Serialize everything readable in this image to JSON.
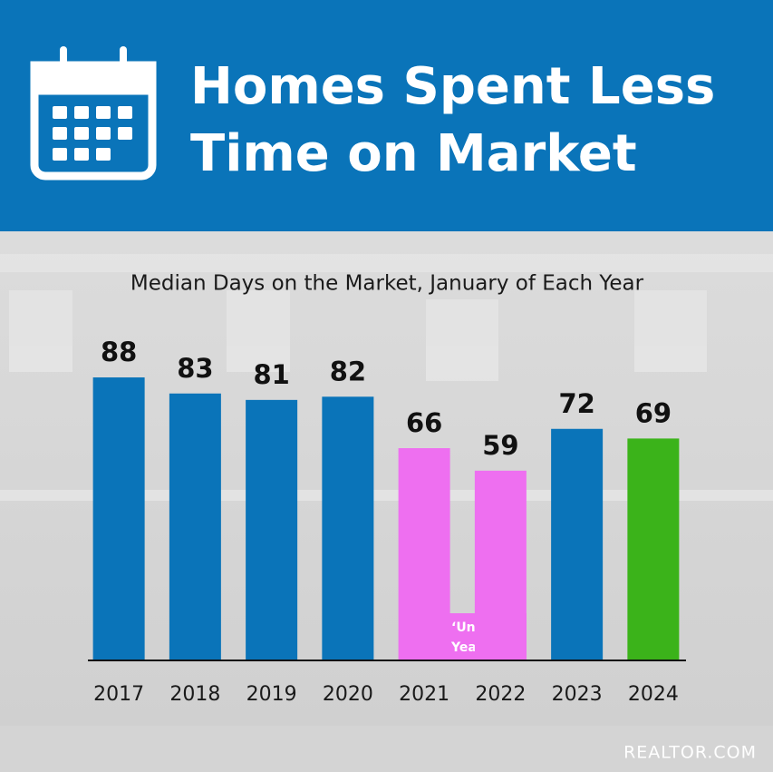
{
  "header": {
    "title_lines": [
      "Homes Spent Less",
      "Time on Market"
    ]
  },
  "chart_data": {
    "type": "bar",
    "title": "Median Days on the Market, January of Each Year",
    "categories": [
      "2017",
      "2018",
      "2019",
      "2020",
      "2021",
      "2022",
      "2023",
      "2024"
    ],
    "values": [
      88,
      83,
      81,
      82,
      66,
      59,
      72,
      69
    ],
    "colors": [
      "#0a74b9",
      "#0a74b9",
      "#0a74b9",
      "#0a74b9",
      "#ee6ff0",
      "#ee6ff0",
      "#0a74b9",
      "#3bb31a"
    ],
    "ylim": [
      0,
      100
    ],
    "annotation": [
      "‘Unicorn’",
      "Years"
    ]
  },
  "source": "REALTOR.COM"
}
